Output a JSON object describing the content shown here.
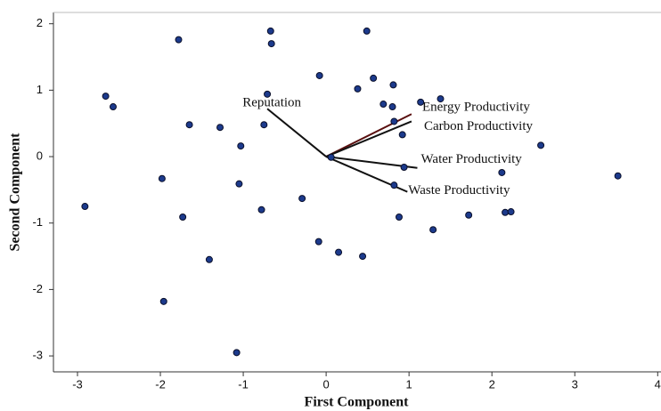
{
  "chart_data": {
    "type": "scatter",
    "x_label": "First Component",
    "y_label": "Second Component",
    "xlim": [
      -3.29,
      4.04
    ],
    "ylim": [
      -3.24,
      2.17
    ],
    "xticks": [
      -3,
      -2,
      -1,
      0,
      1,
      2,
      3,
      4
    ],
    "yticks": [
      -3,
      -2,
      -1,
      0,
      1,
      2
    ],
    "color": "#1c3a8c",
    "x": [
      -0.67,
      -0.66,
      -1.78,
      0.49,
      -2.66,
      -2.57,
      -0.08,
      0.57,
      0.38,
      0.81,
      -0.71,
      -1.65,
      -1.28,
      -1.03,
      -0.75,
      0.69,
      0.8,
      1.14,
      1.38,
      0.82,
      0.92,
      2.59,
      3.52,
      2.12,
      0.06,
      0.94,
      0.82,
      -1.98,
      -1.05,
      -0.29,
      -2.91,
      -1.73,
      -0.78,
      0.88,
      1.72,
      2.16,
      2.23,
      1.29,
      -0.09,
      0.15,
      0.44,
      -1.41,
      -1.96,
      -1.08
    ],
    "values": [
      1.89,
      1.7,
      1.76,
      1.89,
      0.91,
      0.75,
      1.22,
      1.18,
      1.02,
      1.08,
      0.94,
      0.48,
      0.44,
      0.16,
      0.48,
      0.79,
      0.75,
      0.82,
      0.87,
      0.53,
      0.33,
      0.17,
      -0.29,
      -0.24,
      -0.01,
      -0.16,
      -0.43,
      -0.33,
      -0.41,
      -0.63,
      -0.75,
      -0.91,
      -0.8,
      -0.91,
      -0.88,
      -0.84,
      -0.83,
      -1.1,
      -1.28,
      -1.44,
      -1.5,
      -1.55,
      -2.18,
      -2.95
    ],
    "loadings": [
      {
        "name": "Reputation",
        "x": -0.71,
        "y": 0.72
      },
      {
        "name": "Energy Productivity",
        "x": 1.03,
        "y": 0.64
      },
      {
        "name": "Carbon Productivity",
        "x": 1.03,
        "y": 0.53
      },
      {
        "name": "Water Productivity",
        "x": 1.1,
        "y": -0.17
      },
      {
        "name": "Waste Productivity",
        "x": 0.98,
        "y": -0.53
      }
    ]
  }
}
